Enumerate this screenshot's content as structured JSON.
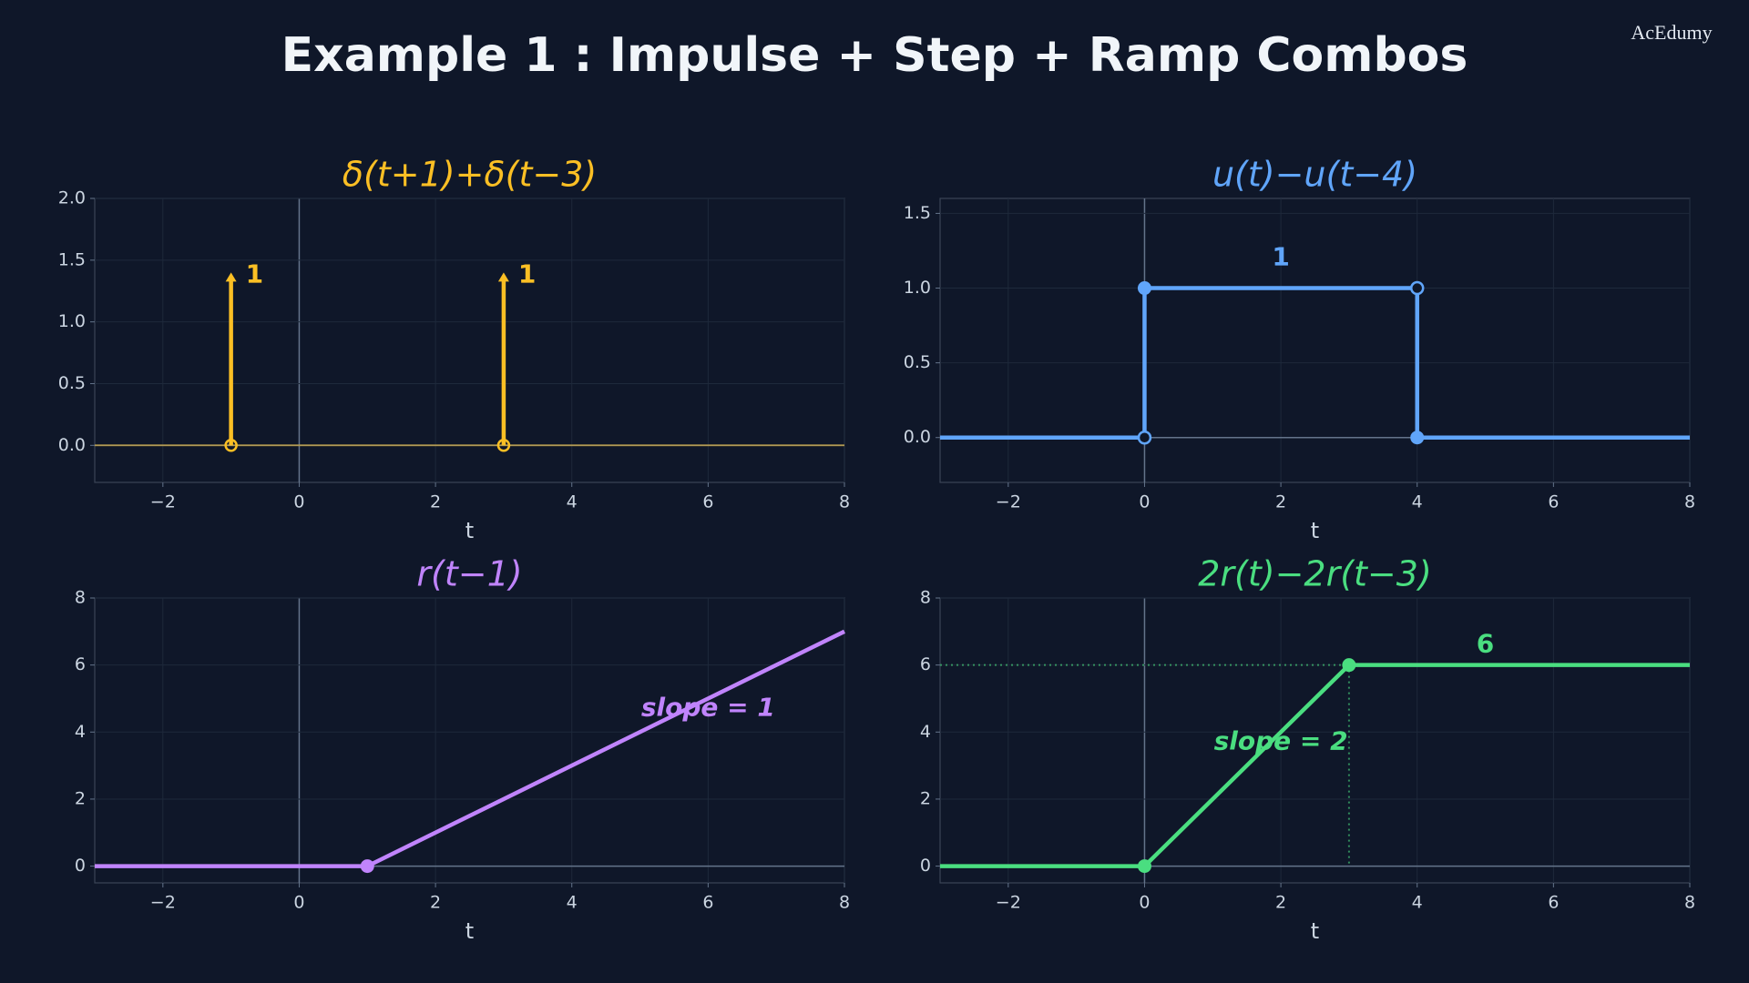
{
  "title": "Example 1 :  Impulse + Step + Ramp Combos",
  "watermark": "AcEdumy",
  "chart_data": [
    {
      "type": "stem",
      "title": "δ(t+1)+δ(t−3)",
      "xlabel": "t",
      "color": "#fbbf24",
      "x": [
        -1,
        3
      ],
      "values": [
        1,
        1
      ],
      "xlim": [
        -3,
        8
      ],
      "ylim": [
        -0.3,
        2.0
      ],
      "xticks": [
        {
          "value": -2,
          "label": "−2"
        },
        0,
        2,
        4,
        6,
        8
      ],
      "yticks": [
        {
          "value": 0,
          "label": "0.0"
        },
        {
          "value": 0.5,
          "label": "0.5"
        },
        {
          "value": 1,
          "label": "1.0"
        },
        {
          "value": 1.5,
          "label": "1.5"
        },
        {
          "value": 2,
          "label": "2.0"
        }
      ],
      "grid": true
    },
    {
      "type": "line",
      "title": "u(t)−u(t−4)",
      "xlabel": "t",
      "color": "#60a5fa",
      "x": [
        -3,
        0,
        0,
        4,
        4,
        8
      ],
      "values": [
        0,
        0,
        1,
        1,
        0,
        0
      ],
      "dots": {
        "x": [
          0,
          4
        ],
        "values": [
          1,
          0
        ]
      },
      "open_dots": {
        "x": [
          0,
          4
        ],
        "values": [
          0,
          1
        ]
      },
      "annotations": [
        "1"
      ],
      "xlim": [
        -3,
        8
      ],
      "ylim": [
        -0.3,
        1.6
      ],
      "xticks": [
        {
          "value": -2,
          "label": "−2"
        },
        0,
        2,
        4,
        6,
        8
      ],
      "yticks": [
        {
          "value": 0,
          "label": "0.0"
        },
        {
          "value": 0.5,
          "label": "0.5"
        },
        {
          "value": 1,
          "label": "1.0"
        },
        {
          "value": 1.5,
          "label": "1.5"
        }
      ],
      "grid": true
    },
    {
      "type": "line",
      "title": "r(t−1)",
      "xlabel": "t",
      "color": "#c084fc",
      "x": [
        -3,
        1,
        8
      ],
      "values": [
        0,
        0,
        7
      ],
      "dots": {
        "x": [
          1
        ],
        "values": [
          0
        ]
      },
      "annotations": [
        "slope = 1"
      ],
      "xlim": [
        -3,
        8
      ],
      "ylim": [
        -0.5,
        8
      ],
      "xticks": [
        {
          "value": -2,
          "label": "−2"
        },
        0,
        2,
        4,
        6,
        8
      ],
      "yticks": [
        0,
        2,
        4,
        6,
        8
      ],
      "grid": true
    },
    {
      "type": "line",
      "title": "2r(t)−2r(t−3)",
      "xlabel": "t",
      "color": "#4ade80",
      "x": [
        -3,
        0,
        3,
        8
      ],
      "values": [
        0,
        0,
        6,
        6
      ],
      "dots": {
        "x": [
          0,
          3
        ],
        "values": [
          0,
          6
        ]
      },
      "guides": true,
      "annotations": [
        "6",
        "slope = 2"
      ],
      "xlim": [
        -3,
        8
      ],
      "ylim": [
        -0.5,
        8
      ],
      "xticks": [
        {
          "value": -2,
          "label": "−2"
        },
        0,
        2,
        4,
        6,
        8
      ],
      "yticks": [
        0,
        2,
        4,
        6,
        8
      ],
      "grid": true
    }
  ]
}
